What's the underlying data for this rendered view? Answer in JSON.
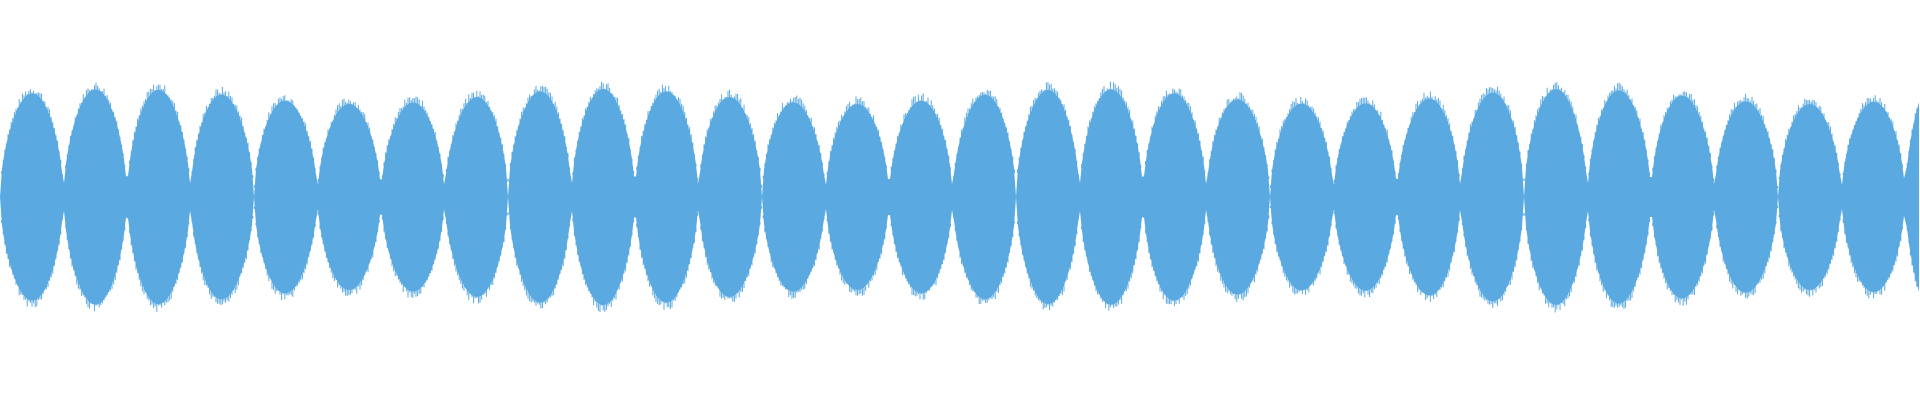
{
  "waveform": {
    "color": "#5aa9e1",
    "background": "#ffffff",
    "lobe_count": 30,
    "envelope_amplitude": 0.27,
    "edge_trailing_half_lobe": true
  }
}
